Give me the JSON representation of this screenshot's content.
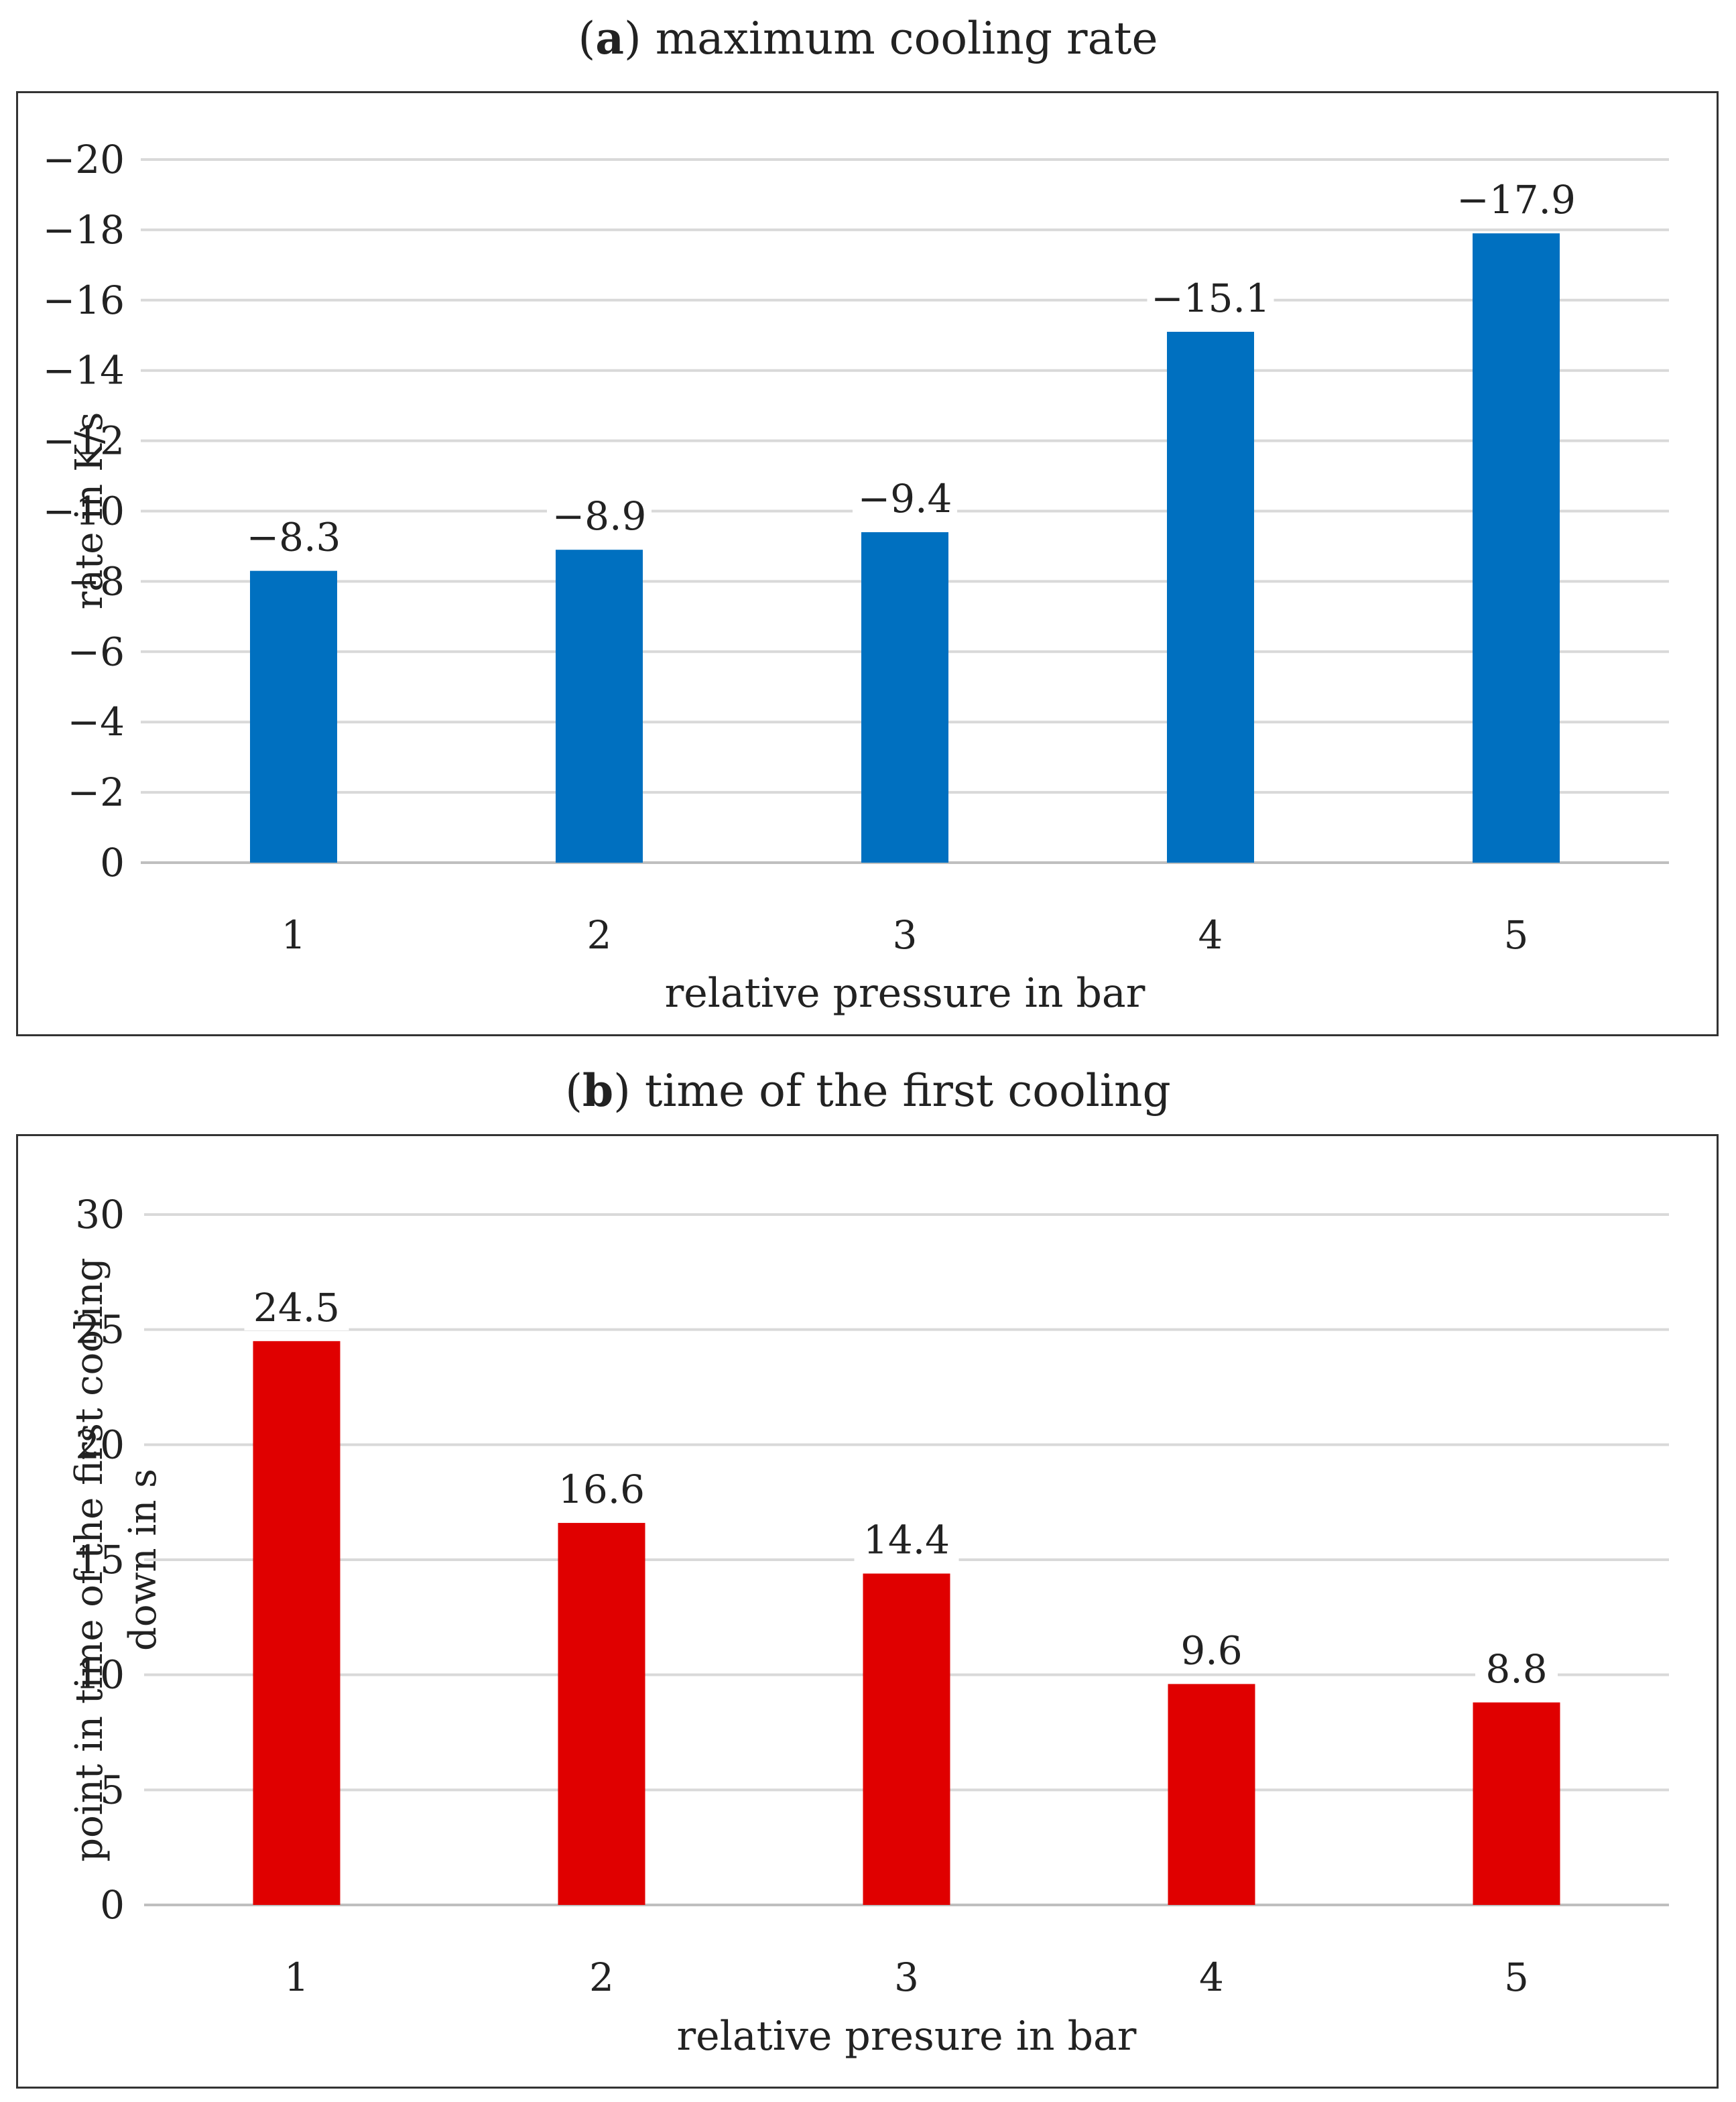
{
  "charts": {
    "a": {
      "letter": "a",
      "title": "maximum cooling rate"
    },
    "b": {
      "letter": "b",
      "title": "time of the first cooling"
    }
  },
  "chart_data": [
    {
      "type": "bar",
      "title": "(a) maximum cooling rate",
      "categories": [
        "1",
        "2",
        "3",
        "4",
        "5"
      ],
      "values": [
        -8.3,
        -8.9,
        -9.4,
        -15.1,
        -17.9
      ],
      "data_labels": [
        "−8.3",
        "−8.9",
        "−9.4",
        "−15.1",
        "−17.9"
      ],
      "xlabel": "relative pressure in bar",
      "ylabel": "rate in K/s",
      "ylim": [
        0,
        -20
      ],
      "yticks": [
        0,
        -2,
        -4,
        -6,
        -8,
        -10,
        -12,
        -14,
        -16,
        -18,
        -20
      ],
      "ytick_labels": [
        "0",
        "−2",
        "−4",
        "−6",
        "−8",
        "−10",
        "−12",
        "−14",
        "−16",
        "−18",
        "−20"
      ],
      "grid": true,
      "color": "#0070C0"
    },
    {
      "type": "bar",
      "title": "(b) time of the first cooling",
      "categories": [
        "1",
        "2",
        "3",
        "4",
        "5"
      ],
      "values": [
        24.5,
        16.6,
        14.4,
        9.6,
        8.8
      ],
      "data_labels": [
        "24.5",
        "16.6",
        "14.4",
        "9.6",
        "8.8"
      ],
      "xlabel": "relative presure in bar",
      "ylabel_lines": [
        "point in time of the first cooling",
        "down  in s"
      ],
      "ylim": [
        0,
        30
      ],
      "yticks": [
        0,
        5,
        10,
        15,
        20,
        25,
        30
      ],
      "ytick_labels": [
        "0",
        "5",
        "10",
        "15",
        "20",
        "25",
        "30"
      ],
      "grid": true,
      "color": "#E00000"
    }
  ]
}
